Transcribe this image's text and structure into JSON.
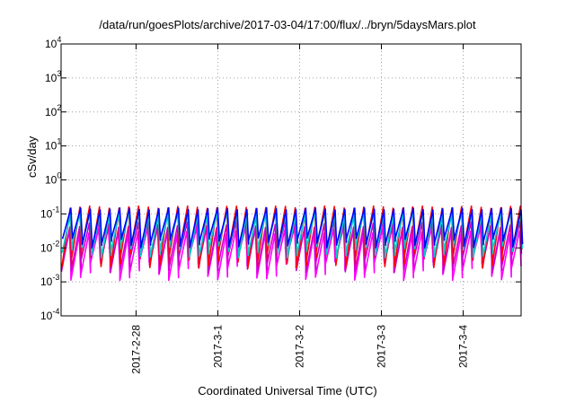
{
  "chart_data": {
    "type": "line",
    "title": "/data/run/goesPlots/archive/2017-03-04/17:00/flux/../bryn/5daysMars.plot",
    "xlabel": "Coordinated Universal Time (UTC)",
    "ylabel": "cSv/day",
    "yscale": "log",
    "ylim": [
      0.0001,
      10000
    ],
    "ytick_base": "10",
    "ytick_exponents": [
      "-4",
      "-3",
      "-2",
      "-1",
      "0",
      "1",
      "2",
      "3",
      "4"
    ],
    "x_start": "2017-02-27T02:00",
    "x_end": "2017-03-04T17:00",
    "xtick_labels": [
      "2017-2-28",
      "2017-3-1",
      "2017-3-2",
      "2017-3-3",
      "2017-3-4"
    ],
    "grid": true,
    "legend": "none",
    "cycle_count": 47,
    "series": [
      {
        "color": "#ff00ff",
        "values_low": [
          0.0045,
          0.0011
        ],
        "values_high": [
          0.04,
          0.018
        ]
      },
      {
        "color": "#cc00cc",
        "values_low": [
          0.006,
          0.0018
        ],
        "values_high": [
          0.06,
          0.03
        ]
      },
      {
        "color": "#ff0000",
        "values_low": [
          0.008,
          0.0025
        ],
        "values_high": [
          0.17,
          0.13
        ]
      },
      {
        "color": "#00cccc",
        "values_low": [
          0.012,
          0.005
        ],
        "values_high": [
          0.12,
          0.08
        ]
      },
      {
        "color": "#0000ff",
        "values_low": [
          0.02,
          0.01
        ],
        "values_high": [
          0.15,
          0.12
        ]
      }
    ]
  }
}
